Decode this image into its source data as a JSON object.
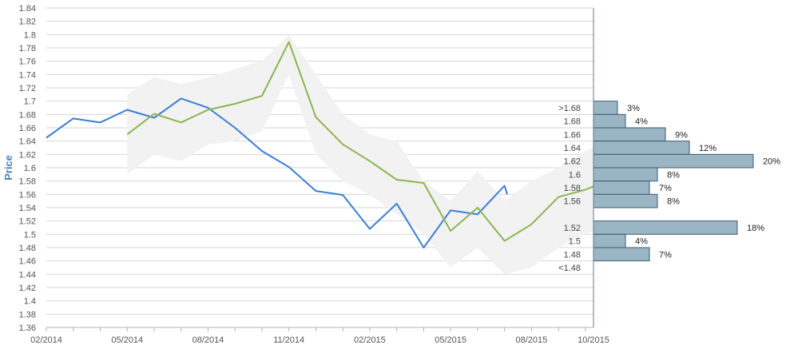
{
  "chart_data": {
    "type": "line",
    "ylabel": "Price",
    "xlabel": "",
    "ylim": [
      1.36,
      1.84
    ],
    "y_ticks": [
      "1.36",
      "1.38",
      "1.4",
      "1.42",
      "1.44",
      "1.46",
      "1.48",
      "1.5",
      "1.52",
      "1.54",
      "1.56",
      "1.58",
      "1.6",
      "1.62",
      "1.64",
      "1.66",
      "1.68",
      "1.7",
      "1.72",
      "1.74",
      "1.76",
      "1.78",
      "1.8",
      "1.82",
      "1.84"
    ],
    "x_ticks": [
      "02/2014",
      "05/2014",
      "08/2014",
      "11/2014",
      "02/2015",
      "05/2015",
      "08/2015",
      "10/2015"
    ],
    "x_tick_months": [
      0,
      3,
      6,
      9,
      12,
      15,
      18,
      20.3
    ],
    "xlim_months": [
      0,
      20.3
    ],
    "grid": true,
    "series": [
      {
        "color": "#3a7fd5",
        "x_months": [
          0,
          1,
          2,
          3,
          4,
          5,
          6,
          7,
          8,
          9,
          10,
          11,
          12,
          13,
          14,
          15,
          16,
          17,
          17.1
        ],
        "values": [
          1.645,
          1.674,
          1.668,
          1.687,
          1.675,
          1.704,
          1.69,
          1.66,
          1.625,
          1.601,
          1.565,
          1.559,
          1.508,
          1.546,
          1.48,
          1.536,
          1.53,
          1.573,
          1.56
        ]
      },
      {
        "color": "#8db550",
        "x_months": [
          3,
          4,
          5,
          6,
          7,
          8,
          9,
          10,
          11,
          12,
          13,
          14,
          15,
          16,
          17,
          18,
          19,
          20,
          20.3
        ],
        "values": [
          1.65,
          1.681,
          1.668,
          1.687,
          1.696,
          1.708,
          1.789,
          1.676,
          1.635,
          1.61,
          1.582,
          1.577,
          1.505,
          1.54,
          1.49,
          1.515,
          1.556,
          1.567,
          1.572
        ]
      }
    ],
    "band": {
      "color": "#f2f2f2",
      "x_months": [
        3,
        4,
        5,
        6,
        7,
        8,
        9,
        10,
        11,
        12,
        13,
        14,
        15,
        16,
        17,
        18,
        19,
        20,
        20.3
      ],
      "upper": [
        1.71,
        1.736,
        1.726,
        1.735,
        1.748,
        1.76,
        1.8,
        1.74,
        1.68,
        1.65,
        1.64,
        1.58,
        1.55,
        1.595,
        1.55,
        1.58,
        1.6,
        1.625,
        1.63
      ],
      "lower": [
        1.59,
        1.62,
        1.61,
        1.635,
        1.64,
        1.655,
        1.74,
        1.62,
        1.58,
        1.56,
        1.53,
        1.5,
        1.45,
        1.48,
        1.44,
        1.45,
        1.48,
        1.5,
        1.505
      ]
    },
    "distribution": {
      "type": "bar",
      "orientation": "horizontal",
      "bar_color": "#9ab5c4",
      "bins": [
        {
          "label": ">1.68",
          "y_center": 1.69,
          "percent": 3,
          "percent_label": "3%"
        },
        {
          "label": "1.68",
          "y_center": 1.67,
          "percent": 4,
          "percent_label": "4%"
        },
        {
          "label": "1.66",
          "y_center": 1.65,
          "percent": 9,
          "percent_label": "9%"
        },
        {
          "label": "1.64",
          "y_center": 1.63,
          "percent": 12,
          "percent_label": "12%"
        },
        {
          "label": "1.62",
          "y_center": 1.61,
          "percent": 20,
          "percent_label": "20%"
        },
        {
          "label": "1.6",
          "y_center": 1.59,
          "percent": 8,
          "percent_label": "8%"
        },
        {
          "label": "1.58",
          "y_center": 1.57,
          "percent": 7,
          "percent_label": "7%"
        },
        {
          "label": "1.56",
          "y_center": 1.55,
          "percent": 8,
          "percent_label": "8%"
        },
        {
          "label": "1.52",
          "y_center": 1.51,
          "percent": 18,
          "percent_label": "18%"
        },
        {
          "label": "1.5",
          "y_center": 1.49,
          "percent": 4,
          "percent_label": "4%"
        },
        {
          "label": "1.48",
          "y_center": 1.47,
          "percent": 7,
          "percent_label": "7%"
        },
        {
          "label": "<1.48",
          "y_center": null,
          "percent": null,
          "percent_label": ""
        }
      ]
    }
  }
}
